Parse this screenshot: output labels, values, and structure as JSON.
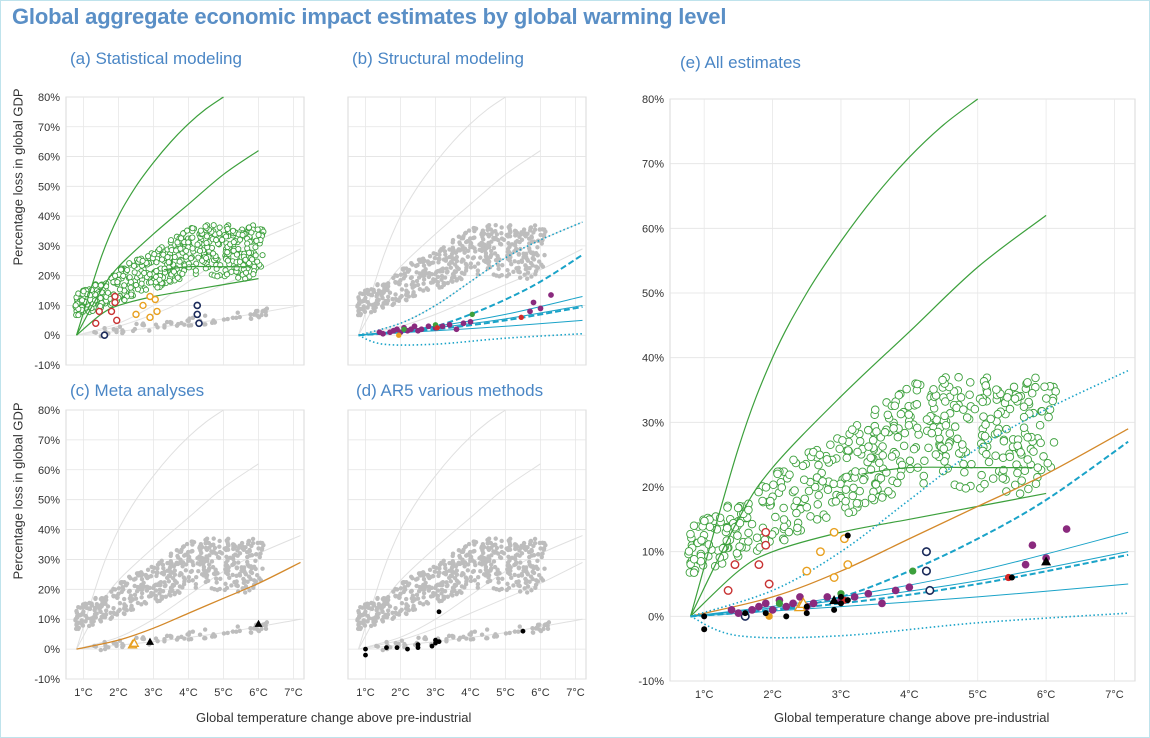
{
  "title": "Global aggregate economic impact estimates by global warming level",
  "x_axis_label": "Global temperature change above pre-industrial",
  "y_axis_label": "Percentage loss in global GDP",
  "x_ticks": [
    "1°C",
    "2°C",
    "3°C",
    "4°C",
    "5°C",
    "6°C",
    "7°C"
  ],
  "y_ticks": [
    "-10%",
    "0%",
    "10%",
    "20%",
    "30%",
    "40%",
    "50%",
    "60%",
    "70%",
    "80%"
  ],
  "colors": {
    "statistical": "#3ca03c",
    "structural_purple": "#8a2a7e",
    "structural_green": "#3ca03c",
    "structural_red": "#d42a2a",
    "structural_orange": "#e8a020",
    "meta_curve": "#d4892a",
    "meta_triangle": "#000000",
    "ar5": "#000000",
    "background_points": "#bdbdbd",
    "blue_curves": "#1aa3c8",
    "red_ring": "#c83232",
    "orange_ring": "#e8a020",
    "navy_ring": "#1a2a5a",
    "title_blue": "#5a8fc6"
  },
  "chart_data": [
    {
      "id": "a",
      "title": "(a) Statistical modeling",
      "type": "scatter",
      "xlim": [
        0.5,
        7.3
      ],
      "ylim": [
        -10,
        80
      ],
      "series": [
        {
          "curve": "green-upper",
          "x": [
            0.8,
            1.5,
            2,
            2.5,
            3,
            3.5,
            4,
            4.5,
            5
          ],
          "y": [
            0,
            26,
            40,
            50,
            58,
            65,
            71,
            76,
            80
          ]
        },
        {
          "curve": "green-mid",
          "x": [
            0.8,
            1.5,
            2,
            3,
            4,
            5,
            6
          ],
          "y": [
            0,
            15,
            23,
            34,
            44,
            54,
            62
          ]
        },
        {
          "curve": "green-low",
          "x": [
            0.8,
            1.5,
            2,
            3,
            4,
            5,
            6
          ],
          "y": [
            0,
            7,
            10,
            13,
            15,
            17,
            19
          ]
        },
        {
          "curve": "green-flat",
          "x": [
            3.3,
            4,
            5,
            5.8
          ],
          "y": [
            22,
            23,
            23,
            23
          ]
        },
        {
          "markers": "red-rings",
          "x": [
            1.35,
            1.45,
            1.8,
            1.9,
            1.9,
            1.95
          ],
          "y": [
            4,
            8,
            8,
            11,
            13,
            5
          ]
        },
        {
          "markers": "orange-rings",
          "x": [
            2.5,
            2.7,
            2.9,
            2.9,
            3.05,
            3.1
          ],
          "y": [
            7,
            10,
            13,
            6,
            12,
            8
          ]
        },
        {
          "markers": "navy-rings",
          "x": [
            1.6,
            4.25,
            4.25,
            4.3
          ],
          "y": [
            0,
            10,
            7,
            4
          ]
        }
      ]
    },
    {
      "id": "b",
      "title": "(b) Structural modeling",
      "type": "scatter",
      "xlim": [
        0.5,
        7.3
      ],
      "ylim": [
        -10,
        80
      ],
      "series": [
        {
          "curve": "blue-dotted-upper",
          "x": [
            0.8,
            2,
            3,
            4,
            5,
            6,
            7.2
          ],
          "y": [
            0,
            4,
            10,
            18,
            26,
            32,
            38
          ]
        },
        {
          "curve": "blue-dashed-upper",
          "x": [
            0.8,
            2,
            3,
            4,
            5,
            6,
            7.2
          ],
          "y": [
            0,
            1,
            3,
            7,
            12,
            18,
            27
          ]
        },
        {
          "curve": "blue-solid-1",
          "x": [
            0.8,
            3,
            5,
            7.2
          ],
          "y": [
            0,
            3,
            7,
            13
          ]
        },
        {
          "curve": "blue-solid-2",
          "x": [
            0.8,
            3,
            5,
            7.2
          ],
          "y": [
            0,
            2.5,
            5.5,
            10
          ]
        },
        {
          "curve": "blue-dashed-lower",
          "x": [
            0.8,
            3,
            5,
            7.2
          ],
          "y": [
            0,
            2,
            5,
            9.5
          ]
        },
        {
          "curve": "blue-solid-3",
          "x": [
            0.8,
            3,
            5,
            7.2
          ],
          "y": [
            0,
            1.5,
            3,
            5
          ]
        },
        {
          "curve": "blue-dotted-lower",
          "x": [
            0.8,
            1.5,
            3,
            5,
            7.2
          ],
          "y": [
            0,
            -3,
            -3,
            -1,
            0.5
          ]
        },
        {
          "markers": "purple",
          "x": [
            1.4,
            1.5,
            1.7,
            1.8,
            1.9,
            2,
            2.1,
            2.2,
            2.3,
            2.4,
            2.5,
            2.6,
            2.8,
            3,
            3.2,
            3.4,
            3.6,
            3.8,
            4,
            5.7,
            5.8,
            6,
            6.3
          ],
          "y": [
            1,
            0.5,
            1,
            1.5,
            2,
            1,
            2.5,
            1.5,
            2,
            3,
            1.5,
            2,
            3,
            2.5,
            3,
            3.5,
            2,
            4,
            4.5,
            8,
            11,
            9,
            13.5
          ]
        },
        {
          "markers": "green",
          "x": [
            2.1,
            3.0,
            4.05
          ],
          "y": [
            2,
            3.5,
            7
          ]
        },
        {
          "markers": "red",
          "x": [
            3.05,
            5.45
          ],
          "y": [
            2.5,
            6
          ]
        },
        {
          "markers": "orange",
          "x": [
            1.95
          ],
          "y": [
            0
          ]
        }
      ]
    },
    {
      "id": "c",
      "title": "(c) Meta analyses",
      "type": "scatter",
      "xlim": [
        0.5,
        7.3
      ],
      "ylim": [
        -10,
        80
      ],
      "series": [
        {
          "curve": "orange-meta",
          "x": [
            0.8,
            2,
            3,
            4,
            5,
            6,
            7.2
          ],
          "y": [
            0,
            3,
            7,
            12,
            17,
            22,
            29
          ]
        },
        {
          "markers": "black-triangles",
          "x": [
            2.9,
            6.0
          ],
          "y": [
            2.5,
            8.5
          ]
        },
        {
          "markers": "orange-triangles",
          "x": [
            2.4,
            2.45
          ],
          "y": [
            1.5,
            2
          ]
        }
      ]
    },
    {
      "id": "d",
      "title": "(d) AR5 various methods",
      "type": "scatter",
      "xlim": [
        0.5,
        7.3
      ],
      "ylim": [
        -10,
        80
      ],
      "series": [
        {
          "markers": "black-dots",
          "x": [
            1,
            1,
            1.6,
            1.9,
            2.2,
            2.5,
            2.5,
            2.9,
            3,
            3,
            3.1,
            3.1,
            5.5
          ],
          "y": [
            0,
            -2,
            0.5,
            0.5,
            0,
            0.5,
            1.5,
            1,
            2,
            3,
            12.5,
            2.5,
            6
          ]
        }
      ]
    },
    {
      "id": "e",
      "title": "(e) All estimates",
      "type": "scatter",
      "xlim": [
        0.5,
        7.3
      ],
      "ylim": [
        -10,
        80
      ],
      "series": [
        {
          "curve": "green-upper",
          "x": [
            0.8,
            1.5,
            2,
            2.5,
            3,
            3.5,
            4,
            4.5,
            5
          ],
          "y": [
            0,
            26,
            40,
            50,
            58,
            65,
            71,
            76,
            80
          ]
        },
        {
          "curve": "green-mid",
          "x": [
            0.8,
            1.5,
            2,
            3,
            4,
            5,
            6
          ],
          "y": [
            0,
            15,
            23,
            34,
            44,
            54,
            62
          ]
        },
        {
          "curve": "green-low",
          "x": [
            0.8,
            1.5,
            2,
            3,
            4,
            5,
            6
          ],
          "y": [
            0,
            7,
            10,
            13,
            15,
            17,
            19
          ]
        },
        {
          "curve": "green-flat",
          "x": [
            3.3,
            4,
            5,
            5.8
          ],
          "y": [
            22,
            23,
            23,
            23
          ]
        },
        {
          "curve": "orange-meta",
          "x": [
            0.8,
            2,
            3,
            4,
            5,
            6,
            7.2
          ],
          "y": [
            0,
            3,
            7,
            12,
            17,
            22,
            29
          ]
        },
        {
          "curve": "blue-dotted-upper",
          "x": [
            0.8,
            2,
            3,
            4,
            5,
            6,
            7.2
          ],
          "y": [
            0,
            4,
            10,
            18,
            26,
            32,
            38
          ]
        },
        {
          "curve": "blue-dashed-upper",
          "x": [
            0.8,
            2,
            3,
            4,
            5,
            6,
            7.2
          ],
          "y": [
            0,
            1,
            3,
            7,
            12,
            18,
            27
          ]
        },
        {
          "curve": "blue-solid-1",
          "x": [
            0.8,
            3,
            5,
            7.2
          ],
          "y": [
            0,
            3,
            7,
            13
          ]
        },
        {
          "curve": "blue-solid-2",
          "x": [
            0.8,
            3,
            5,
            7.2
          ],
          "y": [
            0,
            2.5,
            5.5,
            10
          ]
        },
        {
          "curve": "blue-dashed-lower",
          "x": [
            0.8,
            3,
            5,
            7.2
          ],
          "y": [
            0,
            2,
            5,
            9.5
          ]
        },
        {
          "curve": "blue-solid-3",
          "x": [
            0.8,
            3,
            5,
            7.2
          ],
          "y": [
            0,
            1.5,
            3,
            5
          ]
        },
        {
          "curve": "blue-dotted-lower",
          "x": [
            0.8,
            1.5,
            3,
            5,
            7.2
          ],
          "y": [
            0,
            -3,
            -3,
            -1,
            0.5
          ]
        }
      ]
    }
  ]
}
